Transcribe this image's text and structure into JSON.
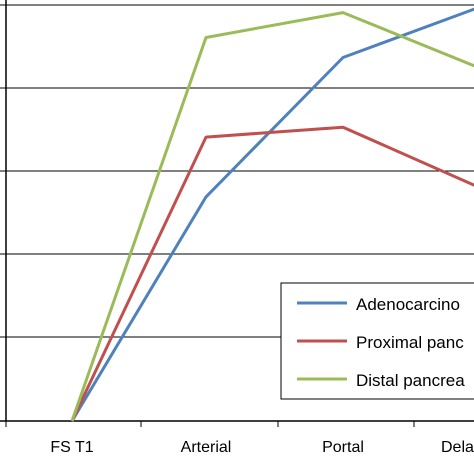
{
  "chart_data": {
    "type": "line",
    "categories": [
      "FS T1",
      "Arterial",
      "Portal",
      "Delayed"
    ],
    "category_labels_shown": [
      "FS T1",
      "Arterial",
      "Portal",
      "Dela"
    ],
    "ylim": [
      0,
      100
    ],
    "grid": true,
    "legend_placement": "bottom-right",
    "series": [
      {
        "name": "Adenocarcino",
        "color": "#4f81bd",
        "values": [
          0,
          45,
          73,
          83
        ]
      },
      {
        "name": "Proximal panc",
        "color": "#c0504d",
        "values": [
          0,
          57,
          59,
          47
        ]
      },
      {
        "name": "Distal pancrea",
        "color": "#9bbb59",
        "values": [
          0,
          77,
          82,
          71
        ]
      }
    ]
  }
}
